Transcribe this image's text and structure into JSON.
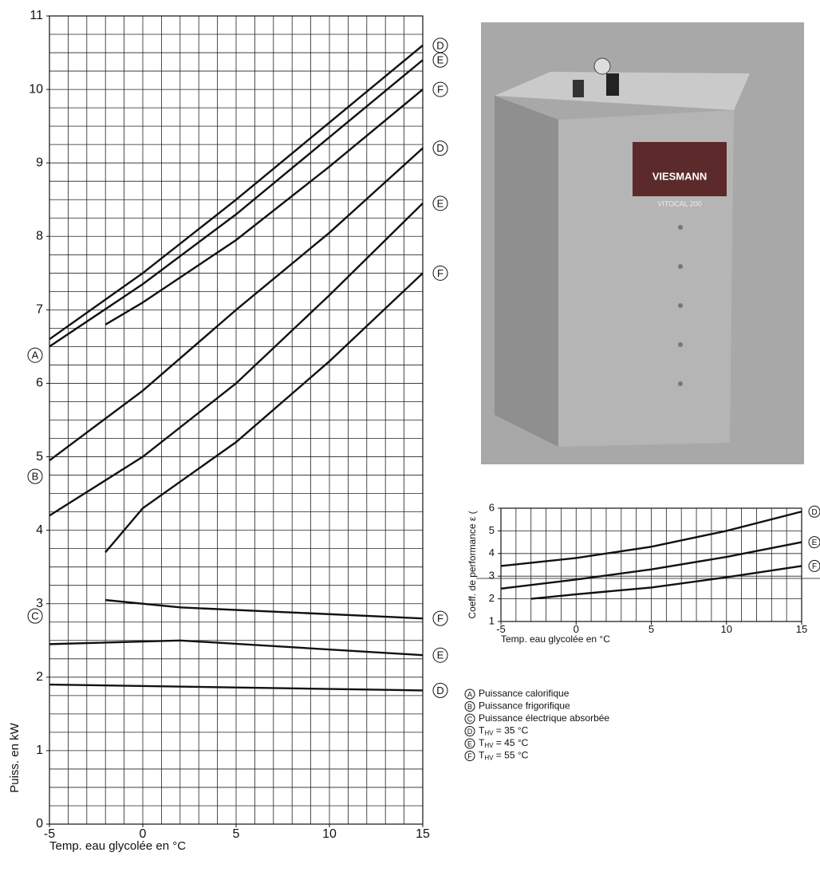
{
  "chart_data": [
    {
      "type": "line",
      "xlabel": "Temp. eau glycolée en °C",
      "ylabel": "Puiss. en kW",
      "xlim": [
        -5,
        15
      ],
      "ylim": [
        0,
        11
      ],
      "xticks": [
        -5,
        0,
        5,
        10,
        15
      ],
      "yticks": [
        0,
        1,
        2,
        3,
        4,
        5,
        6,
        7,
        8,
        9,
        10,
        11
      ],
      "grid": true,
      "grid_step_x": 1,
      "grid_step_y": 0.25,
      "color": "#111111",
      "series": [
        {
          "name": "D",
          "group": "A",
          "x": [
            -5,
            0,
            5,
            10,
            15
          ],
          "values": [
            6.6,
            7.5,
            8.5,
            9.55,
            10.6
          ]
        },
        {
          "name": "E",
          "group": "A",
          "x": [
            -5,
            0,
            5,
            10,
            15
          ],
          "values": [
            6.5,
            7.35,
            8.3,
            9.35,
            10.4
          ]
        },
        {
          "name": "F",
          "group": "A",
          "x": [
            -2,
            0,
            5,
            10,
            15
          ],
          "values": [
            6.8,
            7.1,
            7.95,
            8.95,
            10.0
          ]
        },
        {
          "name": "D",
          "group": "B",
          "x": [
            -5,
            0,
            5,
            10,
            15
          ],
          "values": [
            4.95,
            5.9,
            7.0,
            8.05,
            9.2
          ]
        },
        {
          "name": "E",
          "group": "B",
          "x": [
            -5,
            0,
            5,
            10,
            15
          ],
          "values": [
            4.2,
            5.0,
            6.0,
            7.2,
            8.45
          ]
        },
        {
          "name": "F",
          "group": "B",
          "x": [
            -2,
            0,
            5,
            10,
            15
          ],
          "values": [
            3.7,
            4.3,
            5.2,
            6.3,
            7.5
          ]
        },
        {
          "name": "F",
          "group": "C",
          "x": [
            -2,
            2,
            15
          ],
          "values": [
            3.05,
            2.95,
            2.8
          ]
        },
        {
          "name": "E",
          "group": "C",
          "x": [
            -5,
            2,
            15
          ],
          "values": [
            2.45,
            2.5,
            2.3
          ]
        },
        {
          "name": "D",
          "group": "C",
          "x": [
            -5,
            15
          ],
          "values": [
            1.9,
            1.82
          ]
        }
      ]
    },
    {
      "type": "line",
      "xlabel": "Temp. eau glycolée en °C",
      "ylabel": "Coeff. de performance ε (",
      "xlim": [
        -5,
        15
      ],
      "ylim": [
        1,
        6
      ],
      "xticks": [
        -5,
        0,
        5,
        10,
        15
      ],
      "yticks": [
        1,
        2,
        3,
        4,
        5,
        6
      ],
      "grid": true,
      "grid_step_x": 1,
      "grid_step_y": 1,
      "color": "#111111",
      "series": [
        {
          "name": "D",
          "x": [
            -5,
            0,
            5,
            10,
            15
          ],
          "values": [
            3.45,
            3.8,
            4.3,
            5.0,
            5.85
          ]
        },
        {
          "name": "E",
          "x": [
            -5,
            0,
            5,
            10,
            15
          ],
          "values": [
            2.45,
            2.85,
            3.3,
            3.85,
            4.5
          ]
        },
        {
          "name": "F",
          "x": [
            -3,
            0,
            5,
            10,
            15
          ],
          "values": [
            2.0,
            2.2,
            2.5,
            2.95,
            3.45
          ]
        }
      ]
    }
  ],
  "photo": {
    "brand": "VIESMANN",
    "model": "VITOCAL 200"
  },
  "legend": [
    {
      "marker": "A",
      "text": "Puissance calorifique"
    },
    {
      "marker": "B",
      "text": "Puissance frigorifique"
    },
    {
      "marker": "C",
      "text": "Puissance électrique absorbée"
    },
    {
      "marker": "D",
      "text": "T",
      "sub": "HV",
      "rest": " = 35 °C"
    },
    {
      "marker": "E",
      "text": "T",
      "sub": "HV",
      "rest": " = 45 °C"
    },
    {
      "marker": "F",
      "text": "T",
      "sub": "HV",
      "rest": " = 55 °C"
    }
  ]
}
